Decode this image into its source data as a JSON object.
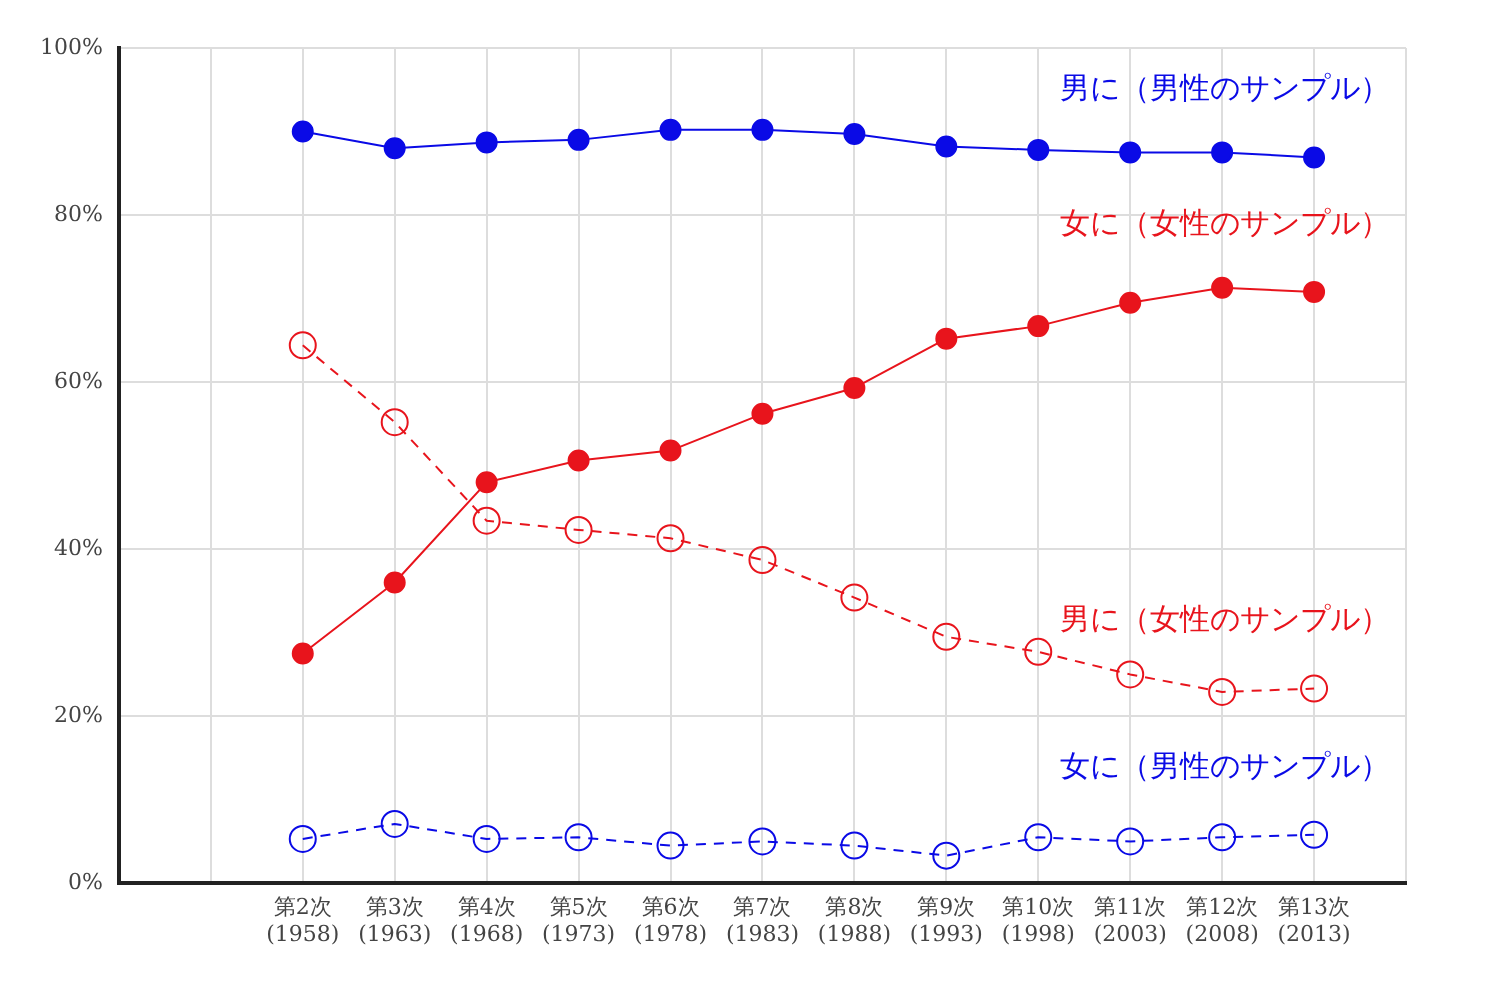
{
  "chart_data": {
    "type": "line",
    "categories": [
      null,
      null,
      "第2次\n(1958)",
      "第3次\n(1963)",
      "第4次\n(1968)",
      "第5次\n(1973)",
      "第6次\n(1978)",
      "第7次\n(1983)",
      "第8次\n(1988)",
      "第9次\n(1993)",
      "第10次\n(1998)",
      "第11次\n(2003)",
      "第12次\n(2008)",
      "第13次\n(2013)",
      null
    ],
    "series": [
      {
        "name": "男に（男性のサンプル）",
        "color": "#0a0ae6",
        "line_style": "solid",
        "values": [
          null,
          null,
          90,
          88,
          88.7,
          89,
          90.2,
          90.2,
          89.7,
          88.2,
          87.8,
          87.5,
          87.5,
          86.9,
          null
        ]
      },
      {
        "name": "女に（女性のサンプル）",
        "color": "#e8141c",
        "line_style": "solid",
        "values": [
          null,
          null,
          27.5,
          36,
          48,
          50.6,
          51.8,
          56.2,
          59.3,
          65.2,
          66.7,
          69.5,
          71.3,
          70.8,
          null
        ]
      },
      {
        "name": "男に（女性のサンプル）",
        "color": "#e8141c",
        "line_style": "dashed",
        "values": [
          null,
          null,
          64.4,
          55.2,
          43.4,
          42.3,
          41.3,
          38.7,
          34.2,
          29.5,
          27.7,
          25,
          22.9,
          23.3,
          null
        ]
      },
      {
        "name": "女に（男性のサンプル）",
        "color": "#0a0ae6",
        "line_style": "dashed",
        "values": [
          null,
          null,
          5.3,
          7.1,
          5.3,
          5.5,
          4.5,
          5,
          4.5,
          3.3,
          5.5,
          5,
          5.5,
          5.8,
          null
        ]
      }
    ],
    "ylim": [
      0,
      100
    ],
    "yticks": [
      {
        "value": 0,
        "label": "0%"
      },
      {
        "value": 20,
        "label": "20%"
      },
      {
        "value": 40,
        "label": "40%"
      },
      {
        "value": 60,
        "label": "60%"
      },
      {
        "value": 80,
        "label": "80%"
      },
      {
        "value": 100,
        "label": "100%"
      }
    ],
    "grid": true,
    "legend": false,
    "marker": "circle"
  }
}
